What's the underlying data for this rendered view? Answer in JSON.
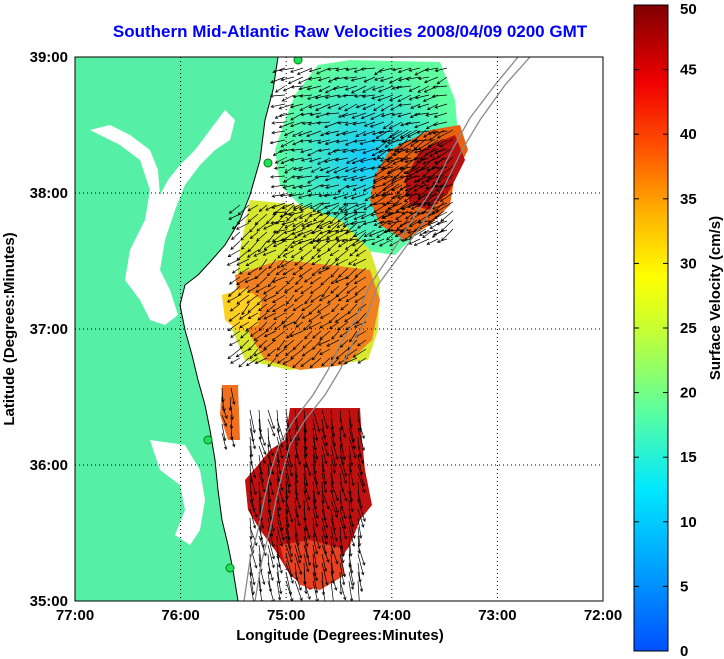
{
  "title": "Southern Mid-Atlantic Raw Velocities 2008/04/09 0200 GMT",
  "map": {
    "x_label": "Longitude (Degrees:Minutes)",
    "y_label": "Latitude (Degrees:Minutes)",
    "x_ticks": [
      "77:00",
      "76:00",
      "75:00",
      "74:00",
      "73:00",
      "72:00"
    ],
    "y_ticks": [
      "39:00",
      "38:00",
      "37:00",
      "36:00",
      "35:00"
    ],
    "lon_range": [
      -77,
      -72
    ],
    "lat_range": [
      35,
      39
    ]
  },
  "colorbar": {
    "label": "Surface Velocity (cm/s)",
    "ticks": [
      "50",
      "45",
      "40",
      "35",
      "30",
      "25",
      "20",
      "15",
      "10",
      "5",
      "0"
    ],
    "range": [
      0,
      50
    ]
  },
  "colors": {
    "land": "#55f0a6",
    "title": "#0000ff"
  }
}
